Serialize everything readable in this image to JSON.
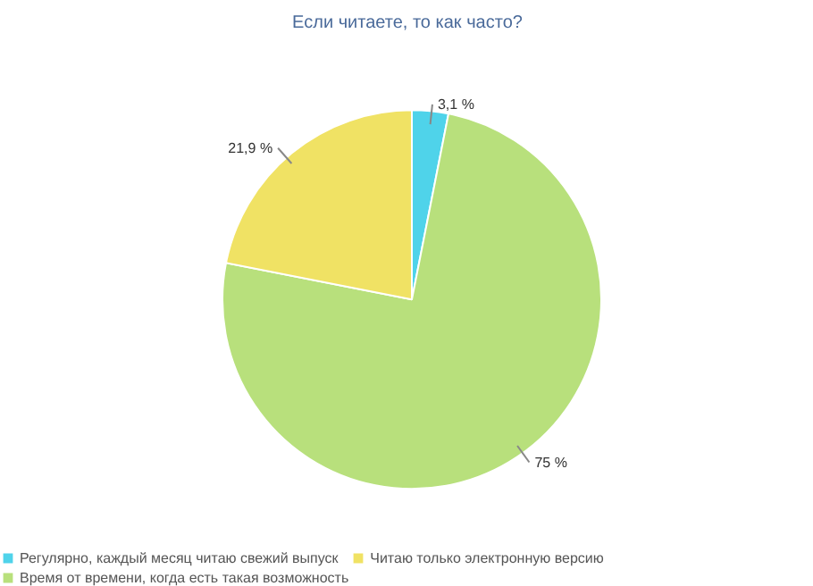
{
  "chart_data": {
    "type": "pie",
    "title": "Если читаете, то как часто?",
    "categories": [
      "Регулярно, каждый месяц читаю свежий выпуск",
      "Время от времени, когда есть такая возможность",
      "Читаю только электронную версию"
    ],
    "values": [
      3.1,
      75,
      21.9
    ],
    "colors": [
      "#4fd3ea",
      "#b8e07c",
      "#f0e264"
    ],
    "value_labels": [
      "3,1 %",
      "75 %",
      "21,9 %"
    ],
    "legend": "bottom"
  }
}
